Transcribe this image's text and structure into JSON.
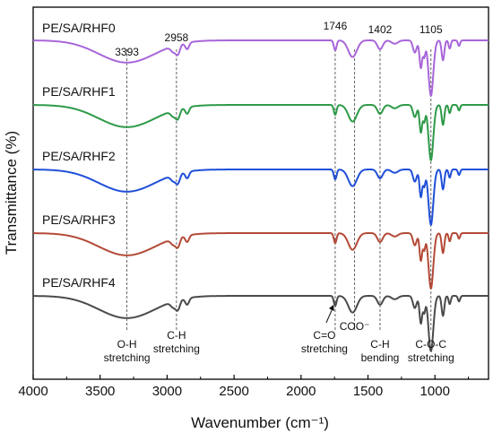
{
  "chart_data": {
    "type": "line",
    "xlabel": "Wavenumber (cm⁻¹)",
    "ylabel": "Transmittance (%)",
    "xlim": [
      4000,
      600
    ],
    "x_reversed": true,
    "x_ticks": [
      4000,
      3500,
      3000,
      2500,
      2000,
      1500,
      1000
    ],
    "y_ticks_shown": false,
    "legend": "inline labels above each curve, left side",
    "series": [
      {
        "name": "PE/SA/RHF0",
        "color": "#a866d9"
      },
      {
        "name": "PE/SA/RHF1",
        "color": "#2e9a48"
      },
      {
        "name": "PE/SA/RHF2",
        "color": "#1f4fd8"
      },
      {
        "name": "PE/SA/RHF3",
        "color": "#b34a37"
      },
      {
        "name": "PE/SA/RHF4",
        "color": "#4a4a4a"
      }
    ],
    "peaks": [
      {
        "label": "3393",
        "x": 3300
      },
      {
        "label": "2958",
        "x": 2930
      },
      {
        "label": "1746",
        "x": 1745
      },
      {
        "label": "1402",
        "x": 1410
      },
      {
        "label": "1105",
        "x": 1030
      }
    ],
    "annotations": [
      {
        "line1": "O-H",
        "line2": "stretching",
        "x": 3300
      },
      {
        "line1": "C-H",
        "line2": "stretching",
        "x": 2930
      },
      {
        "line1": "C=O",
        "line2": "stretching",
        "x": 1745
      },
      {
        "line1": "COO⁻",
        "line2": "",
        "x": 1600
      },
      {
        "line1": "C-H",
        "line2": "bending",
        "x": 1410
      },
      {
        "line1": "C-O-C",
        "line2": "stretching",
        "x": 1030
      }
    ],
    "dashed_reference_lines": [
      3300,
      2930,
      1745,
      1600,
      1410,
      1030
    ]
  }
}
